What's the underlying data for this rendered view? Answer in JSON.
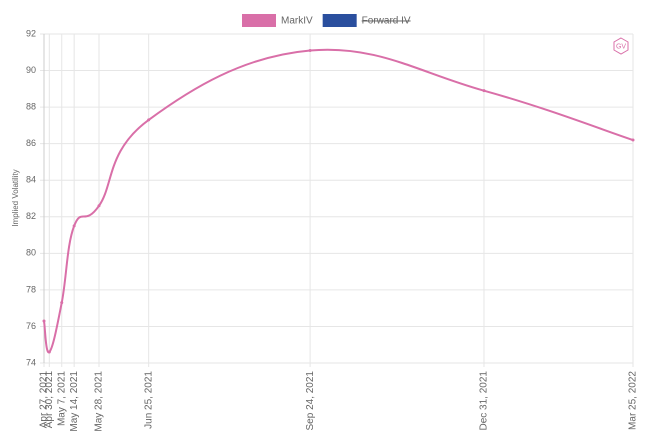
{
  "chart_data": {
    "type": "line",
    "y_label": "Implied Volatility",
    "watermark": "GV",
    "x": [
      "Apr 27, 2021",
      "Apr 30, 2021",
      "May 7, 2021",
      "May 14, 2021",
      "May 28, 2021",
      "Jun 25, 2021",
      "Sep 24, 2021",
      "Dec 31, 2021",
      "Mar 25, 2022"
    ],
    "series": [
      {
        "name": "MarkIV",
        "color": "#d96fa8",
        "values": [
          76.3,
          74.6,
          77.3,
          81.5,
          82.6,
          87.3,
          91.1,
          88.9,
          86.2
        ]
      },
      {
        "name": "Forward IV",
        "color": "#2a4f9e",
        "hidden": true,
        "values": [
          null,
          null,
          null,
          null,
          null,
          null,
          null,
          null,
          null
        ]
      }
    ],
    "ylim": [
      74,
      92
    ],
    "yticks": [
      74,
      76,
      78,
      80,
      82,
      84,
      86,
      88,
      90,
      92
    ],
    "grid": true
  }
}
